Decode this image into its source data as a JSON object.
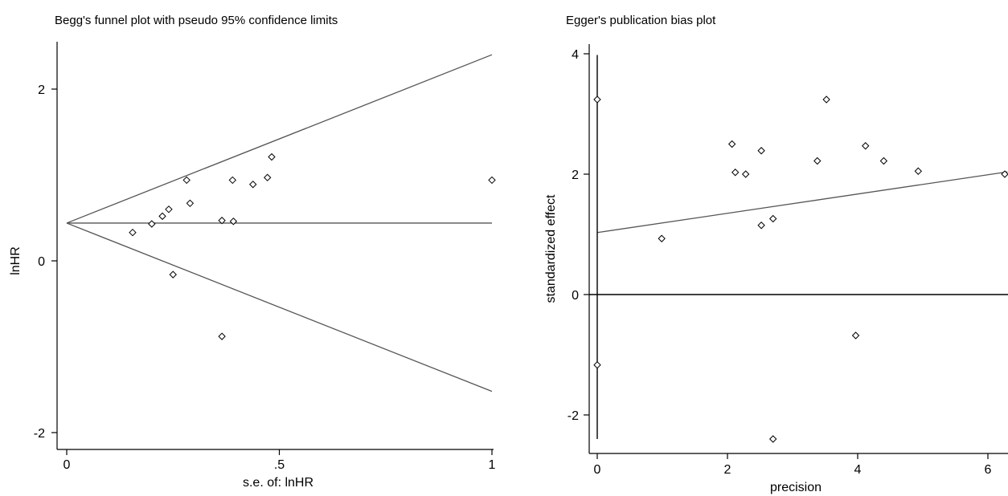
{
  "chart_data": [
    {
      "type": "scatter",
      "title": "Begg's funnel plot with pseudo 95% confidence limits",
      "xlabel": "s.e. of: lnHR",
      "ylabel": "lnHR",
      "xlim": [
        0,
        1
      ],
      "ylim": [
        -2,
        2.4
      ],
      "x_ticks": [
        {
          "value": 0,
          "label": "0"
        },
        {
          "value": 0.5,
          "label": ".5"
        },
        {
          "value": 1,
          "label": "1"
        }
      ],
      "y_ticks": [
        {
          "value": -2,
          "label": "-2"
        },
        {
          "value": 0,
          "label": "0"
        },
        {
          "value": 2,
          "label": "2"
        }
      ],
      "pooled_estimate": 0.44,
      "pseudo_ci_multiplier": 1.96,
      "grid": false,
      "legend": "none",
      "points": [
        {
          "x": 0.155,
          "y": 0.33
        },
        {
          "x": 0.2,
          "y": 0.43
        },
        {
          "x": 0.225,
          "y": 0.52
        },
        {
          "x": 0.24,
          "y": 0.6
        },
        {
          "x": 0.25,
          "y": -0.16
        },
        {
          "x": 0.282,
          "y": 0.94
        },
        {
          "x": 0.29,
          "y": 0.67
        },
        {
          "x": 0.365,
          "y": 0.47
        },
        {
          "x": 0.365,
          "y": -0.88
        },
        {
          "x": 0.39,
          "y": 0.94
        },
        {
          "x": 0.392,
          "y": 0.46
        },
        {
          "x": 0.438,
          "y": 0.89
        },
        {
          "x": 0.472,
          "y": 0.97
        },
        {
          "x": 0.482,
          "y": 1.21
        },
        {
          "x": 1.0,
          "y": 0.94
        }
      ]
    },
    {
      "type": "scatter",
      "title": "Egger's publication bias plot",
      "xlabel": "precision",
      "ylabel": "standardized effect",
      "xlim": [
        0,
        6.3
      ],
      "ylim": [
        -2.65,
        4.1
      ],
      "x_ticks": [
        {
          "value": 0,
          "label": "0"
        },
        {
          "value": 2,
          "label": "2"
        },
        {
          "value": 4,
          "label": "4"
        },
        {
          "value": 6,
          "label": "6"
        }
      ],
      "y_ticks": [
        {
          "value": -2,
          "label": "-2"
        },
        {
          "value": 0,
          "label": "0"
        },
        {
          "value": 2,
          "label": "2"
        },
        {
          "value": 4,
          "label": "4"
        }
      ],
      "regression_line": {
        "intercept": 1.03,
        "slope": 0.16
      },
      "intercept_ci": [
        -2.4,
        3.98
      ],
      "grid": false,
      "legend": "none",
      "points": [
        {
          "x": 0.0,
          "y": 3.24
        },
        {
          "x": 0.0,
          "y": -1.17
        },
        {
          "x": 0.99,
          "y": 0.93
        },
        {
          "x": 2.07,
          "y": 2.5
        },
        {
          "x": 2.12,
          "y": 2.03
        },
        {
          "x": 2.28,
          "y": 2.0
        },
        {
          "x": 2.52,
          "y": 2.39
        },
        {
          "x": 2.52,
          "y": 1.15
        },
        {
          "x": 2.7,
          "y": 1.26
        },
        {
          "x": 2.7,
          "y": -2.4
        },
        {
          "x": 3.38,
          "y": 2.22
        },
        {
          "x": 3.52,
          "y": 3.24
        },
        {
          "x": 3.97,
          "y": -0.68
        },
        {
          "x": 4.12,
          "y": 2.47
        },
        {
          "x": 4.4,
          "y": 2.22
        },
        {
          "x": 4.93,
          "y": 2.05
        },
        {
          "x": 6.28,
          "y": 2.0
        }
      ]
    }
  ]
}
